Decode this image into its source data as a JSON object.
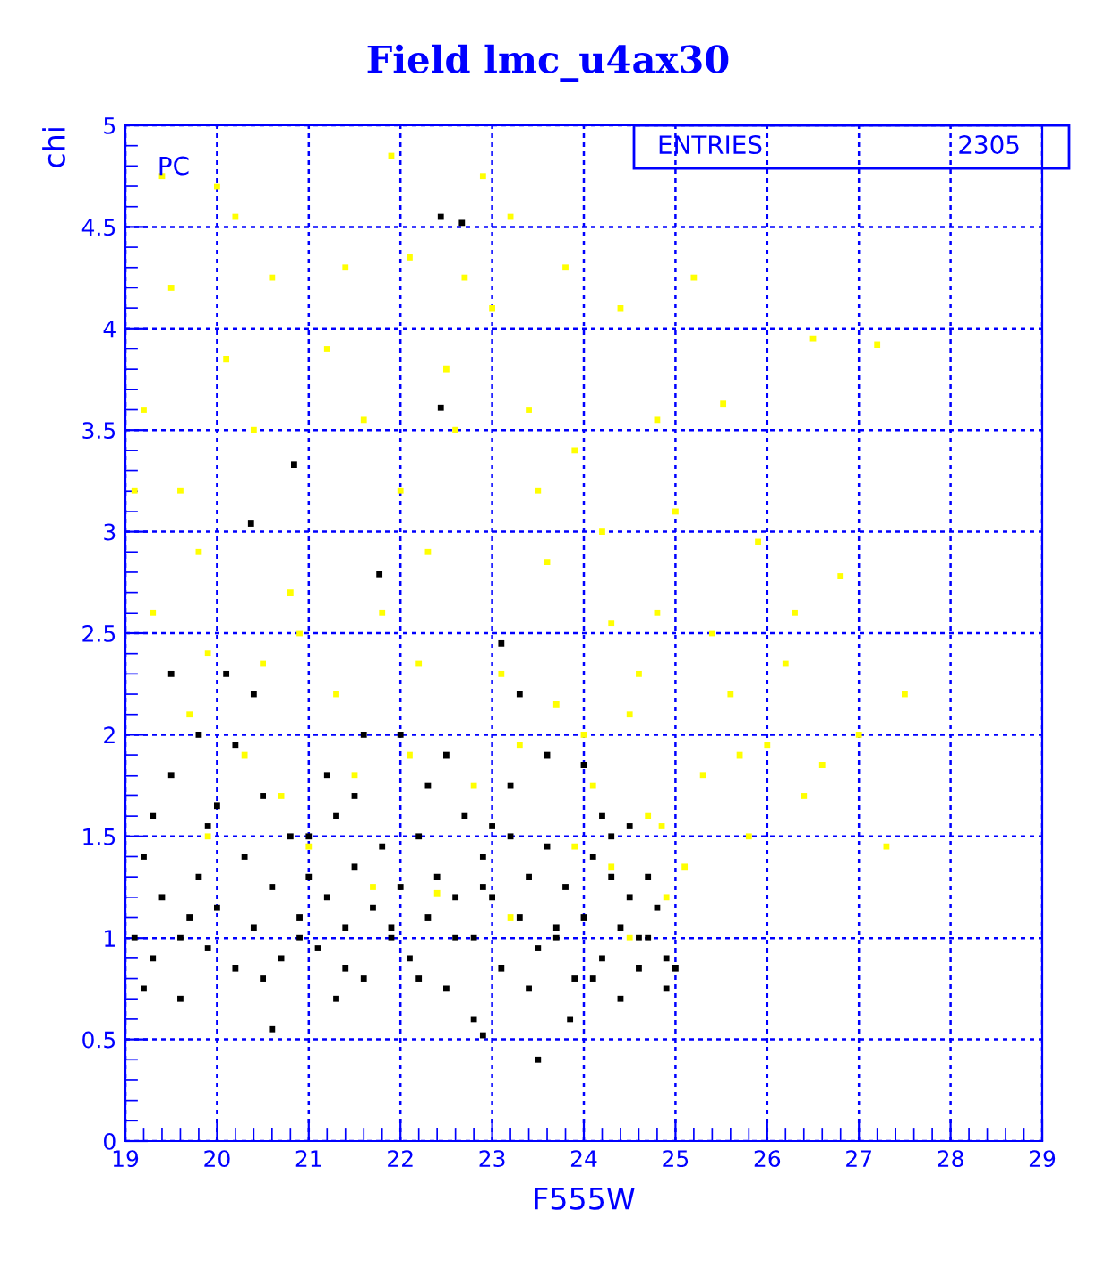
{
  "chart_data": {
    "type": "scatter",
    "title": "Field lmc_u4ax30",
    "xlabel": "F555W",
    "ylabel": "chi",
    "annotations": [
      "PC",
      "ENTRIES",
      "2305"
    ],
    "xlim": [
      19,
      29
    ],
    "ylim": [
      0,
      5
    ],
    "xticks": [
      19,
      20,
      21,
      22,
      23,
      24,
      25,
      26,
      27,
      28,
      29
    ],
    "yticks": [
      0,
      0.5,
      1,
      1.5,
      2,
      2.5,
      3,
      3.5,
      4,
      4.5,
      5
    ],
    "grid": true,
    "marker": "square",
    "series": [
      {
        "color": "#000000",
        "x": [
          19.1,
          19.2,
          19.3,
          19.4,
          19.5,
          19.6,
          19.7,
          19.8,
          19.9,
          19.5,
          19.3,
          19.8,
          20.0,
          20.1,
          20.2,
          20.3,
          20.4,
          20.5,
          20.6,
          20.7,
          20.8,
          20.9,
          20.6,
          20.2,
          20.4,
          20.84,
          20.37,
          21.0,
          21.1,
          21.2,
          21.3,
          21.4,
          21.5,
          21.6,
          21.7,
          21.8,
          21.9,
          21.2,
          21.6,
          21.77,
          21.3,
          22.0,
          22.1,
          22.2,
          22.3,
          22.4,
          22.5,
          22.6,
          22.7,
          22.8,
          22.9,
          22.0,
          22.5,
          22.44,
          22.67,
          22.44,
          22.9,
          22.8,
          23.0,
          23.1,
          23.2,
          23.3,
          23.4,
          23.5,
          23.6,
          23.7,
          23.8,
          23.9,
          23.0,
          23.1,
          23.3,
          23.6,
          23.85,
          23.5,
          24.0,
          24.1,
          24.2,
          24.3,
          24.4,
          24.5,
          24.6,
          24.7,
          24.8,
          24.9,
          24.0,
          24.2,
          24.5,
          24.9,
          25.0,
          24.4,
          19.6,
          20.9,
          21.9,
          22.6,
          23.7,
          24.6,
          19.9,
          21.5,
          22.3,
          23.2,
          24.3,
          19.2,
          20.5,
          21.4,
          22.2,
          23.4,
          24.1,
          20.0,
          22.9,
          21.0,
          24.7
        ],
        "values": [
          1.0,
          1.4,
          0.9,
          1.2,
          1.8,
          0.7,
          1.1,
          1.3,
          0.95,
          2.3,
          1.6,
          2.0,
          1.15,
          2.3,
          0.85,
          1.4,
          1.05,
          1.7,
          1.25,
          0.9,
          1.5,
          1.1,
          0.55,
          1.95,
          2.2,
          3.33,
          3.04,
          1.3,
          0.95,
          1.2,
          1.6,
          1.05,
          1.35,
          0.8,
          1.15,
          1.45,
          1.0,
          1.8,
          2.0,
          2.79,
          0.7,
          1.25,
          0.9,
          1.5,
          1.1,
          1.3,
          0.75,
          1.2,
          1.6,
          1.0,
          1.4,
          2.0,
          1.9,
          4.55,
          4.52,
          3.61,
          0.52,
          0.6,
          1.2,
          0.85,
          1.5,
          1.1,
          1.3,
          0.95,
          1.45,
          1.05,
          1.25,
          0.8,
          1.55,
          2.45,
          2.2,
          1.9,
          0.6,
          0.4,
          1.1,
          1.4,
          0.9,
          1.3,
          1.05,
          1.2,
          0.85,
          1.0,
          1.15,
          0.9,
          1.85,
          1.6,
          1.55,
          0.75,
          0.85,
          0.7,
          1.0,
          1.0,
          1.05,
          1.0,
          1.0,
          1.0,
          1.55,
          1.7,
          1.75,
          1.75,
          1.5,
          0.75,
          0.8,
          0.85,
          0.8,
          0.75,
          0.8,
          1.65,
          1.25,
          1.5,
          1.3
        ]
      },
      {
        "color": "#ffff00",
        "x": [
          19.2,
          19.4,
          19.5,
          19.6,
          19.8,
          19.3,
          19.7,
          19.9,
          20.0,
          20.2,
          20.4,
          20.6,
          20.8,
          20.3,
          20.7,
          20.5,
          21.0,
          21.2,
          21.4,
          21.6,
          21.8,
          21.3,
          21.9,
          21.5,
          22.0,
          22.1,
          22.3,
          22.5,
          22.7,
          22.9,
          22.2,
          22.6,
          22.8,
          22.4,
          23.0,
          23.2,
          23.4,
          23.6,
          23.8,
          23.1,
          23.3,
          23.5,
          23.7,
          23.9,
          24.0,
          24.2,
          24.4,
          24.6,
          24.8,
          24.1,
          24.3,
          24.5,
          24.7,
          24.9,
          24.5,
          25.0,
          25.2,
          25.4,
          25.52,
          25.3,
          25.6,
          25.8,
          25.1,
          25.9,
          26.0,
          26.2,
          26.4,
          26.5,
          26.6,
          26.8,
          27.0,
          27.2,
          27.3,
          27.5,
          26.3,
          25.7,
          24.85,
          20.9,
          19.9,
          22.1,
          23.2,
          24.3,
          21.7,
          20.1,
          19.1,
          23.9,
          24.8
        ],
        "values": [
          3.6,
          4.75,
          4.2,
          3.2,
          2.9,
          2.6,
          2.1,
          1.5,
          4.7,
          4.55,
          3.5,
          4.25,
          2.7,
          1.9,
          1.7,
          2.35,
          1.45,
          3.9,
          4.3,
          3.55,
          2.6,
          2.2,
          4.85,
          1.8,
          3.2,
          4.35,
          2.9,
          3.8,
          4.25,
          4.75,
          2.35,
          3.5,
          1.75,
          1.22,
          4.1,
          4.55,
          3.6,
          2.85,
          4.3,
          2.3,
          1.95,
          3.2,
          2.15,
          1.45,
          2.0,
          3.0,
          4.1,
          2.3,
          2.6,
          1.75,
          1.35,
          2.1,
          1.6,
          1.2,
          1.0,
          3.1,
          4.25,
          2.5,
          3.63,
          1.8,
          2.2,
          1.5,
          1.35,
          2.95,
          1.95,
          2.35,
          1.7,
          3.95,
          1.85,
          2.78,
          2.0,
          3.92,
          1.45,
          2.2,
          2.6,
          1.9,
          1.55,
          2.5,
          2.4,
          1.9,
          1.1,
          2.55,
          1.25,
          3.85,
          3.2,
          3.4,
          3.55
        ]
      }
    ]
  }
}
